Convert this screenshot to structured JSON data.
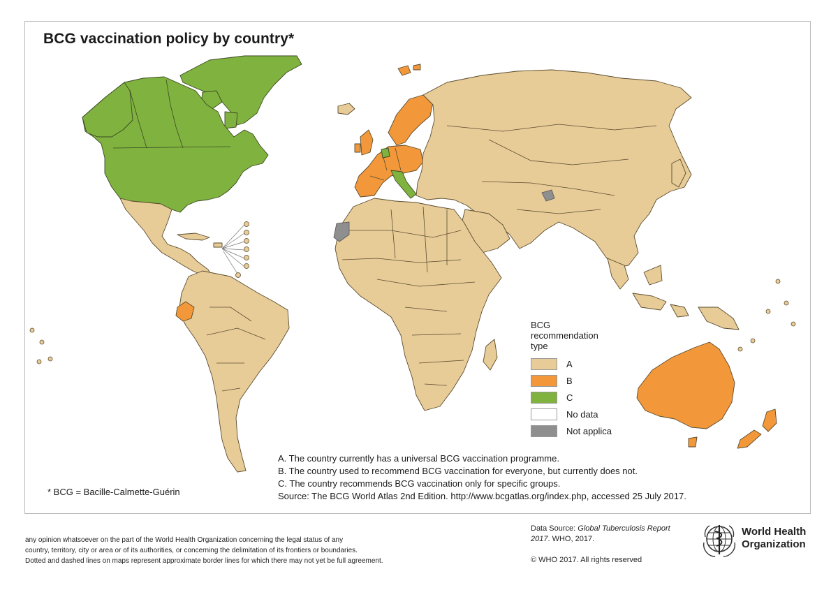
{
  "title": "BCG vaccination policy by country*",
  "legend": {
    "title": "BCG recommendation type",
    "items": [
      {
        "code": "A",
        "label": "A",
        "color": "#e8cc98"
      },
      {
        "code": "B",
        "label": "B",
        "color": "#f2983a"
      },
      {
        "code": "C",
        "label": "C",
        "color": "#7fb23e"
      },
      {
        "code": "ND",
        "label": "No data",
        "color": "#ffffff"
      },
      {
        "code": "NA",
        "label": "Not applica",
        "color": "#8f8f8f"
      }
    ]
  },
  "notes": [
    "A. The country currently has a universal BCG vaccination programme.",
    "B. The country used to recommend BCG vaccination for everyone, but currently does not.",
    "C. The country recommends BCG vaccination only for specific groups.",
    "Source: The BCG World Atlas 2nd Edition. http://www.bcgatlas.org/index.php, accessed 25 July 2017."
  ],
  "footnote": "* BCG = Bacille-Calmette-Guérin",
  "disclaimer": [
    "any opinion whatsoever on the part of the World Health Organization concerning the legal status of any",
    "country, territory, city or area or of its authorities, or concerning the delimitation of its frontiers or boundaries.",
    "Dotted and dashed lines on maps represent approximate border lines for which there may not yet be full agreement."
  ],
  "data_source": {
    "prefix": "Data Source: ",
    "report": "Global Tuberculosis Report 2017",
    "suffix": ". WHO, 2017."
  },
  "copyright": "© WHO 2017. All rights reserved",
  "organization": {
    "line1": "World Health",
    "line2": "Organization",
    "logo_icon": "who-emblem-icon"
  },
  "regions": [
    {
      "name": "North America (USA, Canada)",
      "type": "C"
    },
    {
      "name": "Greenland",
      "type": "C"
    },
    {
      "name": "Mexico & Central America",
      "type": "A"
    },
    {
      "name": "South America",
      "type": "A"
    },
    {
      "name": "Ecuador",
      "type": "B"
    },
    {
      "name": "Iceland",
      "type": "A"
    },
    {
      "name": "Svalbard",
      "type": "B"
    },
    {
      "name": "Scandinavia",
      "type": "B"
    },
    {
      "name": "Western Europe",
      "type": "B"
    },
    {
      "name": "Italy",
      "type": "C"
    },
    {
      "name": "Netherlands / Belgium",
      "type": "C"
    },
    {
      "name": "Russia & Asia",
      "type": "A"
    },
    {
      "name": "Africa",
      "type": "A"
    },
    {
      "name": "Western Sahara",
      "type": "NA"
    },
    {
      "name": "Australia",
      "type": "B"
    },
    {
      "name": "New Zealand",
      "type": "B"
    }
  ]
}
